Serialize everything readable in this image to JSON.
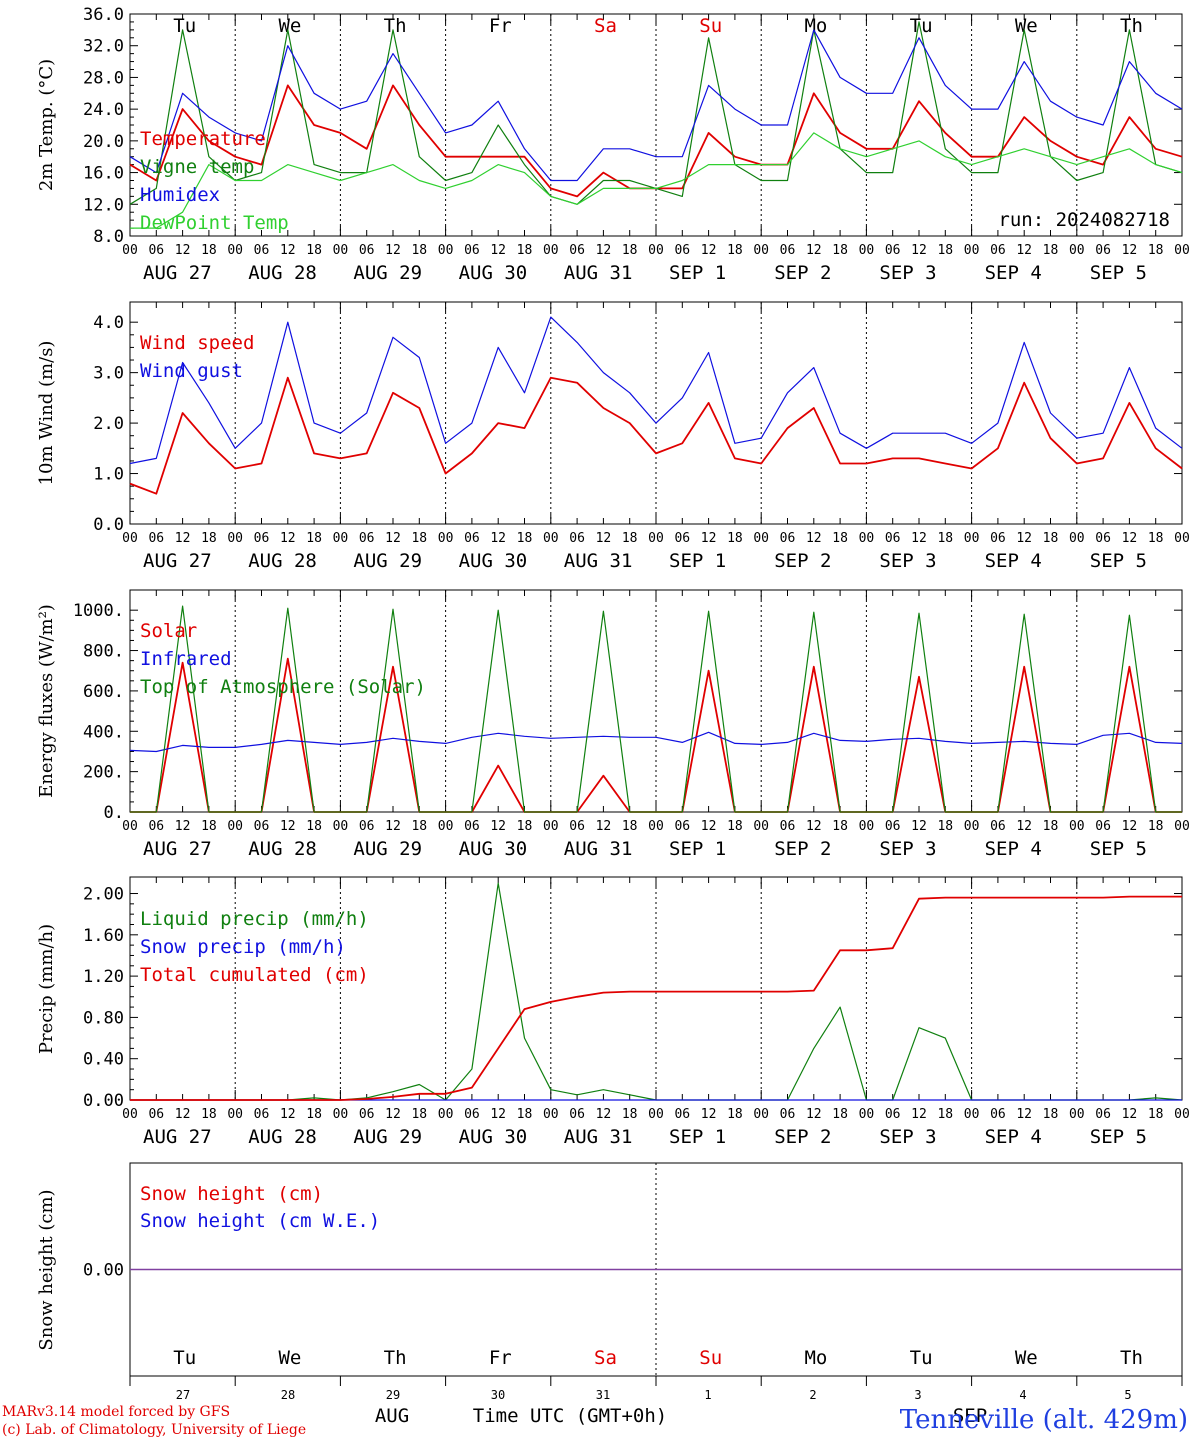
{
  "colors": {
    "red": "#e00000",
    "blue": "#1010e0",
    "darkgreen": "#108010",
    "lightgreen": "#30d030",
    "purple": "#8040a0"
  },
  "x_axis": {
    "hour_ticks": [
      "00",
      "06",
      "12",
      "18"
    ],
    "day_labels": [
      "AUG 27",
      "AUG 28",
      "AUG 29",
      "AUG 30",
      "AUG 31",
      "SEP  1",
      "SEP  2",
      "SEP  3",
      "SEP  4",
      "SEP  5"
    ],
    "weekdays": [
      "Tu",
      "We",
      "Th",
      "Fr",
      "Sa",
      "Su",
      "Mo",
      "Tu",
      "We",
      "Th"
    ],
    "weekend_indices": [
      4,
      5
    ],
    "day_numbers": [
      "27",
      "28",
      "29",
      "30",
      "31",
      "1",
      "2",
      "3",
      "4",
      "5"
    ],
    "months": [
      "AUG",
      "SEP"
    ],
    "title": "Time UTC (GMT+0h)"
  },
  "footer": {
    "model": "MARv3.14 model forced by GFS",
    "lab": "(c) Lab. of Climatology, University of Liege",
    "station": "Tenneville (alt. 429m)"
  },
  "chart_data": [
    {
      "type": "line",
      "ylabel": "2m Temp. (°C)",
      "ylim": [
        8,
        36
      ],
      "y_ticks": [
        "8.0",
        "12.0",
        "16.0",
        "20.0",
        "24.0",
        "28.0",
        "32.0",
        "36.0"
      ],
      "annotation": "run: 2024082718",
      "x_hours": [
        0,
        6,
        12,
        18,
        24,
        30,
        36,
        42,
        48,
        54,
        60,
        66,
        72,
        78,
        84,
        90,
        96,
        102,
        108,
        114,
        120,
        126,
        132,
        138,
        144,
        150,
        156,
        162,
        168,
        174,
        180,
        186,
        192,
        198,
        204,
        210,
        216,
        222,
        228,
        234,
        240
      ],
      "series": [
        {
          "name": "Temperature",
          "color": "#e00000",
          "values": [
            17,
            15,
            24,
            20,
            18,
            17,
            27,
            22,
            21,
            19,
            27,
            22,
            18,
            18,
            18,
            18,
            14,
            13,
            16,
            14,
            14,
            14,
            21,
            18,
            17,
            17,
            26,
            21,
            19,
            19,
            25,
            21,
            18,
            18,
            23,
            20,
            18,
            17,
            23,
            19,
            18
          ]
        },
        {
          "name": "Vigne temp",
          "color": "#108010",
          "values": [
            12,
            14,
            34,
            18,
            15,
            16,
            34,
            17,
            16,
            16,
            34,
            18,
            15,
            16,
            22,
            17,
            13,
            12,
            15,
            15,
            14,
            13,
            33,
            17,
            15,
            15,
            34,
            19,
            16,
            16,
            35,
            19,
            16,
            16,
            34,
            18,
            15,
            16,
            34,
            17,
            16
          ]
        },
        {
          "name": "Humidex",
          "color": "#1010e0",
          "values": [
            18,
            16,
            26,
            23,
            21,
            20,
            32,
            26,
            24,
            25,
            31,
            26,
            21,
            22,
            25,
            19,
            15,
            15,
            19,
            19,
            18,
            18,
            27,
            24,
            22,
            22,
            34,
            28,
            26,
            26,
            33,
            27,
            24,
            24,
            30,
            25,
            23,
            22,
            30,
            26,
            24
          ]
        },
        {
          "name": "DewPoint Temp",
          "color": "#30d030",
          "values": [
            9,
            9,
            11,
            17,
            15,
            15,
            17,
            16,
            15,
            16,
            17,
            15,
            14,
            15,
            17,
            16,
            13,
            12,
            14,
            14,
            14,
            15,
            17,
            17,
            17,
            17,
            21,
            19,
            18,
            19,
            20,
            18,
            17,
            18,
            19,
            18,
            17,
            18,
            19,
            17,
            16
          ]
        }
      ]
    },
    {
      "type": "line",
      "ylabel": "10m Wind (m/s)",
      "ylim": [
        0,
        4.4
      ],
      "y_ticks": [
        "0.0",
        "1.0",
        "2.0",
        "3.0",
        "4.0"
      ],
      "x_hours": [
        0,
        6,
        12,
        18,
        24,
        30,
        36,
        42,
        48,
        54,
        60,
        66,
        72,
        78,
        84,
        90,
        96,
        102,
        108,
        114,
        120,
        126,
        132,
        138,
        144,
        150,
        156,
        162,
        168,
        174,
        180,
        186,
        192,
        198,
        204,
        210,
        216,
        222,
        228,
        234,
        240
      ],
      "series": [
        {
          "name": "Wind speed",
          "color": "#e00000",
          "values": [
            0.8,
            0.6,
            2.2,
            1.6,
            1.1,
            1.2,
            2.9,
            1.4,
            1.3,
            1.4,
            2.6,
            2.3,
            1.0,
            1.4,
            2.0,
            1.9,
            2.9,
            2.8,
            2.3,
            2.0,
            1.4,
            1.6,
            2.4,
            1.3,
            1.2,
            1.9,
            2.3,
            1.2,
            1.2,
            1.3,
            1.3,
            1.2,
            1.1,
            1.5,
            2.8,
            1.7,
            1.2,
            1.3,
            2.4,
            1.5,
            1.1
          ]
        },
        {
          "name": "Wind gust",
          "color": "#1010e0",
          "values": [
            1.2,
            1.3,
            3.2,
            2.4,
            1.5,
            2.0,
            4.0,
            2.0,
            1.8,
            2.2,
            3.7,
            3.3,
            1.6,
            2.0,
            3.5,
            2.6,
            4.1,
            3.6,
            3.0,
            2.6,
            2.0,
            2.5,
            3.4,
            1.6,
            1.7,
            2.6,
            3.1,
            1.8,
            1.5,
            1.8,
            1.8,
            1.8,
            1.6,
            2.0,
            3.6,
            2.2,
            1.7,
            1.8,
            3.1,
            1.9,
            1.5
          ]
        }
      ]
    },
    {
      "type": "line",
      "ylabel": "Energy fluxes (W/m²)",
      "ylim": [
        0,
        1100
      ],
      "y_ticks": [
        "0.",
        "200.",
        "400.",
        "600.",
        "800.",
        "1000."
      ],
      "x_hours": [
        0,
        6,
        12,
        18,
        24,
        30,
        36,
        42,
        48,
        54,
        60,
        66,
        72,
        78,
        84,
        90,
        96,
        102,
        108,
        114,
        120,
        126,
        132,
        138,
        144,
        150,
        156,
        162,
        168,
        174,
        180,
        186,
        192,
        198,
        204,
        210,
        216,
        222,
        228,
        234,
        240
      ],
      "series": [
        {
          "name": "Solar",
          "color": "#e00000",
          "values": [
            0,
            0,
            740,
            0,
            0,
            0,
            760,
            0,
            0,
            0,
            720,
            0,
            0,
            0,
            230,
            0,
            0,
            0,
            180,
            0,
            0,
            0,
            700,
            0,
            0,
            0,
            720,
            0,
            0,
            0,
            670,
            0,
            0,
            0,
            720,
            0,
            0,
            0,
            720,
            0,
            0
          ]
        },
        {
          "name": "Infrared",
          "color": "#1010e0",
          "values": [
            305,
            300,
            330,
            320,
            320,
            335,
            355,
            345,
            335,
            345,
            365,
            350,
            340,
            370,
            390,
            375,
            365,
            370,
            375,
            370,
            370,
            345,
            395,
            340,
            335,
            345,
            390,
            355,
            350,
            360,
            365,
            350,
            340,
            345,
            350,
            340,
            335,
            380,
            390,
            345,
            340
          ]
        },
        {
          "name": "Top of Atmosphere (Solar)",
          "color": "#108010",
          "values": [
            0,
            0,
            1020,
            0,
            0,
            0,
            1010,
            0,
            0,
            0,
            1005,
            0,
            0,
            0,
            1000,
            0,
            0,
            0,
            995,
            0,
            0,
            0,
            995,
            0,
            0,
            0,
            990,
            0,
            0,
            0,
            985,
            0,
            0,
            0,
            980,
            0,
            0,
            0,
            975,
            0,
            0
          ]
        }
      ]
    },
    {
      "type": "line",
      "ylabel": "Precip (mm/h)",
      "ylim": [
        0,
        2.16
      ],
      "y_ticks": [
        "0.00",
        "0.40",
        "0.80",
        "1.20",
        "1.60",
        "2.00"
      ],
      "x_hours": [
        0,
        6,
        12,
        18,
        24,
        30,
        36,
        42,
        48,
        54,
        60,
        66,
        72,
        78,
        84,
        90,
        96,
        102,
        108,
        114,
        120,
        126,
        132,
        138,
        144,
        150,
        156,
        162,
        168,
        174,
        180,
        186,
        192,
        198,
        204,
        210,
        216,
        222,
        228,
        234,
        240
      ],
      "series": [
        {
          "name": "Liquid precip (mm/h)",
          "color": "#108010",
          "values": [
            0,
            0,
            0,
            0,
            0,
            0,
            0,
            0.02,
            0,
            0.02,
            0.08,
            0.15,
            0,
            0.3,
            2.1,
            0.6,
            0.1,
            0.05,
            0.1,
            0.05,
            0,
            0,
            0,
            0,
            0,
            0,
            0.5,
            0.9,
            0,
            0,
            0.7,
            0.6,
            0,
            0,
            0,
            0,
            0,
            0,
            0,
            0.02,
            0
          ]
        },
        {
          "name": "Snow precip (mm/h)",
          "color": "#1010e0",
          "values": [
            0,
            0,
            0,
            0,
            0,
            0,
            0,
            0,
            0,
            0,
            0,
            0,
            0,
            0,
            0,
            0,
            0,
            0,
            0,
            0,
            0,
            0,
            0,
            0,
            0,
            0,
            0,
            0,
            0,
            0,
            0,
            0,
            0,
            0,
            0,
            0,
            0,
            0,
            0,
            0,
            0
          ]
        },
        {
          "name": "Total cumulated (cm)",
          "color": "#e00000",
          "values": [
            0,
            0,
            0,
            0,
            0,
            0,
            0,
            0,
            0,
            0.01,
            0.03,
            0.06,
            0.06,
            0.12,
            0.5,
            0.88,
            0.95,
            1.0,
            1.04,
            1.05,
            1.05,
            1.05,
            1.05,
            1.05,
            1.05,
            1.05,
            1.06,
            1.45,
            1.45,
            1.47,
            1.95,
            1.96,
            1.96,
            1.96,
            1.96,
            1.96,
            1.96,
            1.96,
            1.97,
            1.97,
            1.97
          ]
        }
      ]
    },
    {
      "type": "line",
      "ylabel": "Snow height (cm)",
      "y_ticks": [
        "0.00"
      ],
      "series": [
        {
          "name": "Snow height (cm)",
          "color": "#e00000",
          "values": [
            0,
            0
          ]
        },
        {
          "name": "Snow height (cm W.E.)",
          "color": "#1010e0",
          "values": [
            0,
            0
          ]
        }
      ]
    }
  ]
}
